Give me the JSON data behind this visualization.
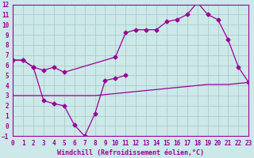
{
  "xlabel": "Windchill (Refroidissement éolien,°C)",
  "bg_color": "#cce8e8",
  "grid_color": "#aacccc",
  "line_color": "#990099",
  "xlim": [
    0,
    23
  ],
  "ylim": [
    -1,
    12
  ],
  "xticks": [
    0,
    1,
    2,
    3,
    4,
    5,
    6,
    7,
    8,
    9,
    10,
    11,
    12,
    13,
    14,
    15,
    16,
    17,
    18,
    19,
    20,
    21,
    22,
    23
  ],
  "yticks": [
    -1,
    0,
    1,
    2,
    3,
    4,
    5,
    6,
    7,
    8,
    9,
    10,
    11,
    12
  ],
  "line_jagged_x": [
    0,
    1,
    2,
    3,
    4,
    5,
    10,
    11,
    12,
    13,
    14,
    15,
    16,
    17,
    18,
    19,
    20,
    21,
    22,
    23
  ],
  "line_jagged_y": [
    6.5,
    6.5,
    5.8,
    5.5,
    5.8,
    5.3,
    6.8,
    9.2,
    9.5,
    9.5,
    9.5,
    10.3,
    10.5,
    11.0,
    12.2,
    11.0,
    10.5,
    8.5,
    5.8,
    4.3
  ],
  "line_smooth_x": [
    0,
    1,
    2,
    3,
    4,
    5,
    6,
    7,
    8,
    9,
    10,
    11,
    12,
    13,
    14,
    15,
    16,
    17,
    18,
    19,
    20,
    21,
    22,
    23
  ],
  "line_smooth_y": [
    3.0,
    3.0,
    3.0,
    3.0,
    3.0,
    3.0,
    3.0,
    3.0,
    3.0,
    3.1,
    3.2,
    3.3,
    3.4,
    3.5,
    3.6,
    3.7,
    3.8,
    3.9,
    4.0,
    4.1,
    4.1,
    4.1,
    4.2,
    4.3
  ],
  "line_dip_x": [
    0,
    1,
    2,
    3,
    4,
    5,
    6,
    7,
    8,
    9,
    10,
    11
  ],
  "line_dip_y": [
    6.5,
    6.5,
    5.8,
    2.5,
    2.2,
    2.0,
    0.1,
    -1.0,
    1.2,
    4.5,
    4.7,
    5.0
  ],
  "markersize": 2.5,
  "linewidth": 0.9,
  "tick_fontsize": 5.5,
  "xlabel_fontsize": 6.0
}
